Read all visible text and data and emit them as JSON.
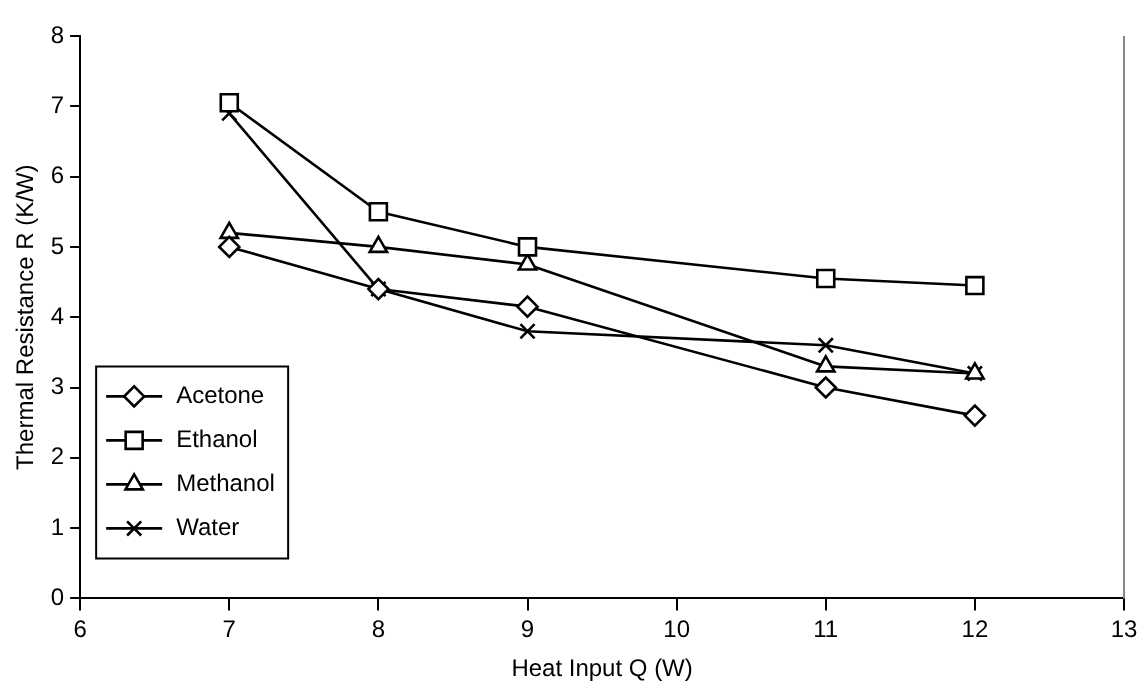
{
  "chart_data": {
    "type": "line",
    "xlabel": "Heat Input Q (W)",
    "ylabel": "Thermal Resistance R (K/W)",
    "x": [
      7,
      8,
      9,
      11,
      12
    ],
    "series": [
      {
        "name": "Acetone",
        "color": "#000000",
        "marker": "diamond",
        "values": [
          5.0,
          4.4,
          4.15,
          3.0,
          2.6
        ]
      },
      {
        "name": "Ethanol",
        "color": "#000000",
        "marker": "square",
        "values": [
          7.05,
          5.5,
          5.0,
          4.55,
          4.45
        ]
      },
      {
        "name": "Methanol",
        "color": "#000000",
        "marker": "triangle",
        "values": [
          5.2,
          5.0,
          4.75,
          3.3,
          3.2
        ]
      },
      {
        "name": "Water",
        "color": "#000000",
        "marker": "cross",
        "values": [
          6.9,
          4.4,
          3.8,
          3.6,
          3.2
        ]
      }
    ],
    "xlim": [
      6,
      13
    ],
    "xticks": [
      6,
      7,
      8,
      9,
      10,
      11,
      12,
      13
    ],
    "ylim": [
      0,
      8
    ],
    "yticks": [
      0,
      1,
      2,
      3,
      4,
      5,
      6,
      7,
      8
    ],
    "grid": false,
    "legend": "bottom left"
  }
}
